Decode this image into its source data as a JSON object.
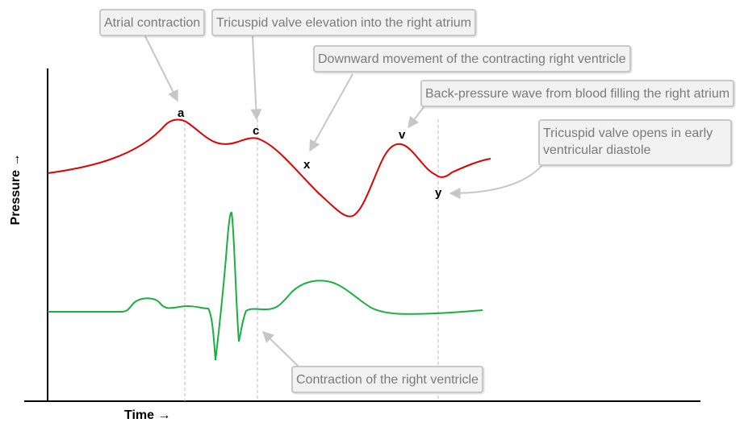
{
  "axes": {
    "x_label": "Time →",
    "y_label": "Pressure →"
  },
  "point_labels": {
    "a": "a",
    "c": "c",
    "x": "x",
    "v": "v",
    "y": "y"
  },
  "callouts": {
    "atrial_contraction": "Atrial contraction",
    "tricuspid_elevation": "Tricuspid valve elevation into the right atrium",
    "downward_movement": "Downward movement of the contracting right ventricle",
    "back_pressure": "Back-pressure wave from blood filling the right atrium",
    "tricuspid_opens": "Tricuspid valve opens in early ventricular diastole",
    "ventricle_contraction": "Contraction of the right ventricle"
  },
  "colors": {
    "pressure_trace": "#e00000",
    "ecg_trace": "#18b040",
    "axis": "#000000",
    "guide": "#bcbcbc",
    "pointer": "#c6c6c6"
  }
}
